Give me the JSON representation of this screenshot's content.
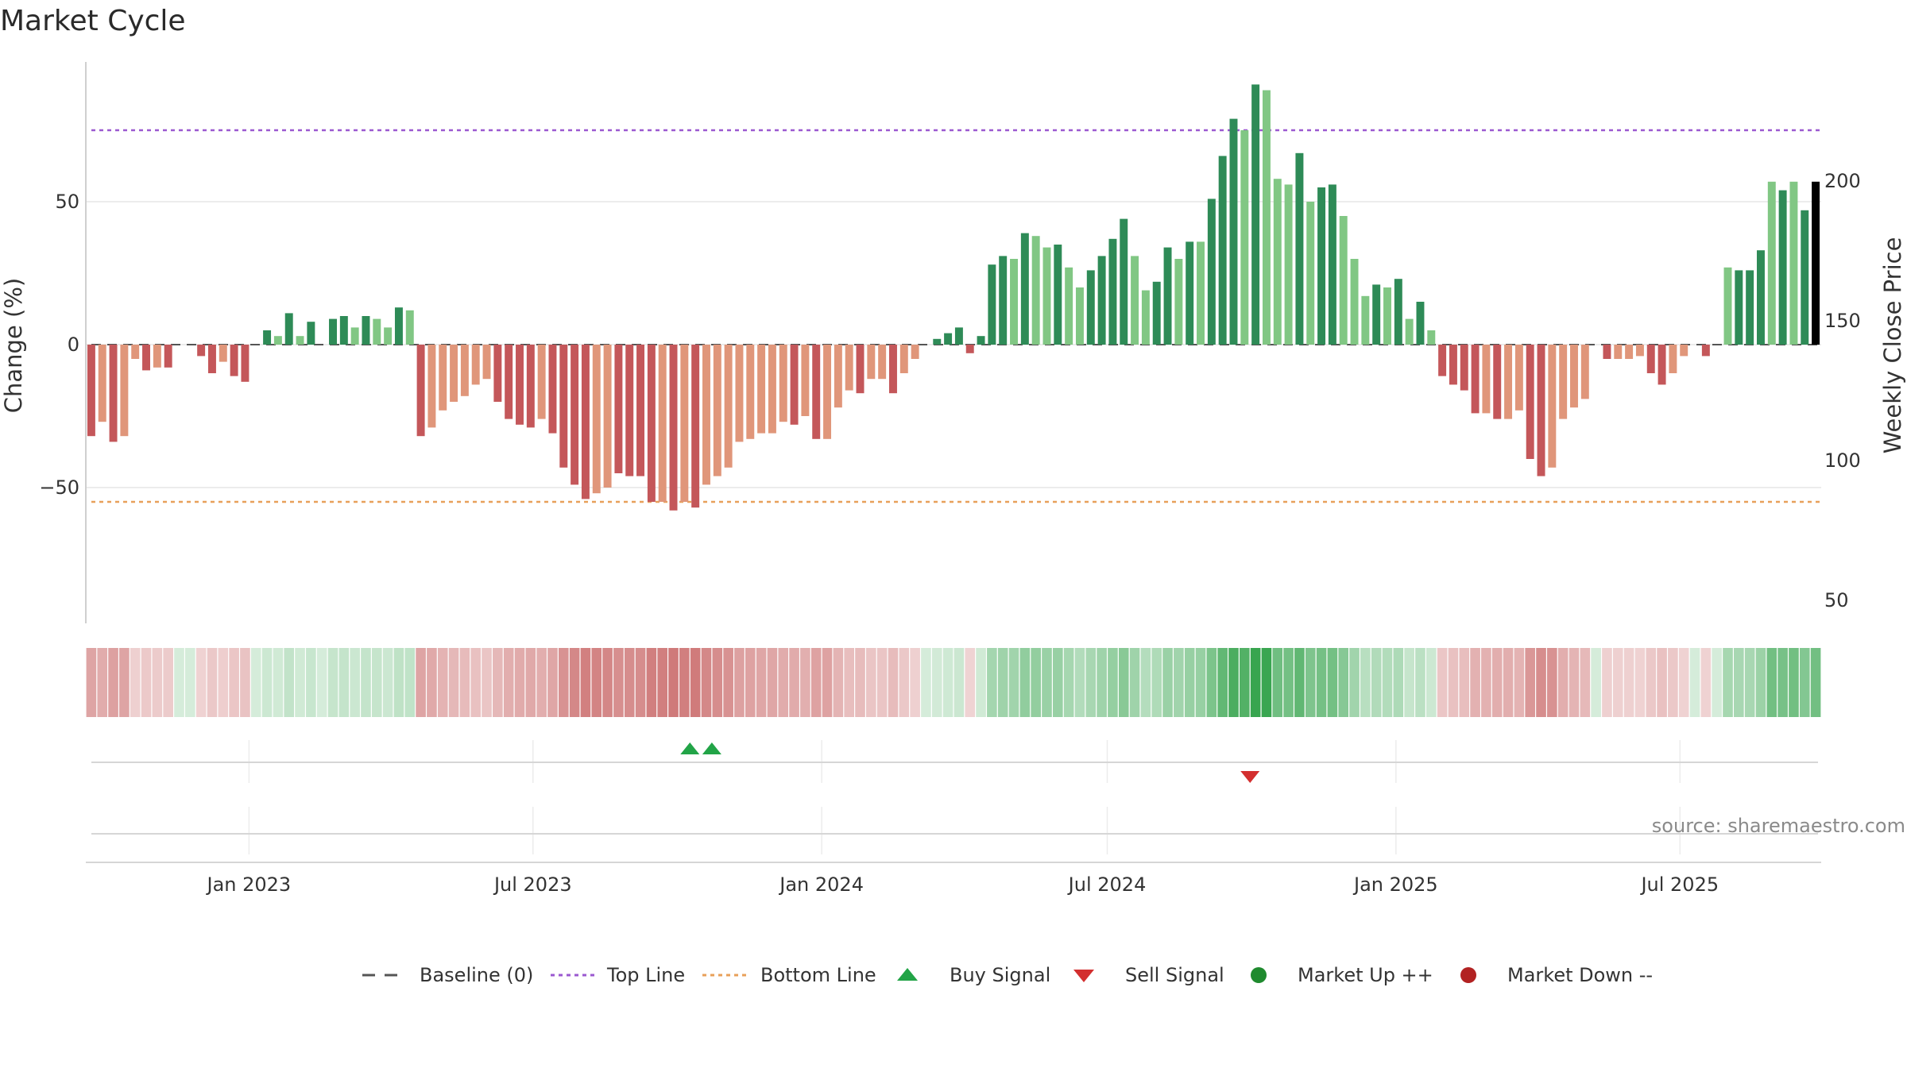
{
  "chart_data": {
    "type": "bar",
    "title": "Market Cycle",
    "ylabel": "Change (%)",
    "y2label": "Weekly Close Price",
    "ylim": [
      -98,
      98
    ],
    "y_ticks": [
      50,
      0,
      -50
    ],
    "y_tick_labels": [
      "50",
      "0",
      "−50"
    ],
    "y2lim": [
      50,
      200
    ],
    "y2_ticks": [
      200,
      150,
      100,
      50
    ],
    "y2_tick_labels": [
      "200",
      "150",
      "100",
      "50"
    ],
    "x_range": [
      "2022-09-19",
      "2025-09-29"
    ],
    "x_ticks": [
      "2023-01-01",
      "2023-07-01",
      "2024-01-01",
      "2024-07-01",
      "2025-01-01",
      "2025-07-01"
    ],
    "x_tick_labels": [
      "Jan 2023",
      "Jul 2023",
      "Jan 2024",
      "Jul 2024",
      "Jan 2025",
      "Jul 2025"
    ],
    "start_date": "2022-09-19",
    "values": [
      -32,
      -27,
      -34,
      -32,
      -5,
      -9,
      -8,
      -8,
      0,
      0,
      -4,
      -10,
      -6,
      -11,
      -13,
      0,
      5,
      3,
      11,
      3,
      8,
      0,
      9,
      10,
      6,
      10,
      9,
      6,
      13,
      12,
      -32,
      -29,
      -23,
      -20,
      -18,
      -14,
      -12,
      -20,
      -26,
      -28,
      -29,
      -26,
      -31,
      -43,
      -49,
      -54,
      -52,
      -50,
      -45,
      -46,
      -46,
      -55,
      -55,
      -58,
      -55,
      -57,
      -49,
      -46,
      -43,
      -34,
      -33,
      -31,
      -31,
      -27,
      -28,
      -25,
      -33,
      -33,
      -22,
      -16,
      -17,
      -12,
      -12,
      -17,
      -10,
      -5,
      0,
      2,
      4,
      6,
      -3,
      3,
      28,
      31,
      30,
      39,
      38,
      34,
      35,
      27,
      20,
      26,
      31,
      37,
      44,
      31,
      19,
      22,
      34,
      30,
      36,
      36,
      51,
      66,
      79,
      75,
      91,
      89,
      58,
      56,
      67,
      50,
      55,
      56,
      45,
      30,
      17,
      21,
      20,
      23,
      9,
      15,
      5,
      -11,
      -14,
      -16,
      -24,
      -24,
      -26,
      -26,
      -23,
      -40,
      -46,
      -43,
      -26,
      -22,
      -19,
      0,
      -5,
      -5,
      -5,
      -4,
      -10,
      -14,
      -10,
      -4,
      0,
      -4,
      0,
      27,
      26,
      26,
      33,
      57,
      54,
      57,
      47,
      57
    ],
    "bar_colors": [
      "#c4575a",
      "#e0967a",
      "#c4575a",
      "#e0967a",
      "#e0967a",
      "#c4575a",
      "#e0967a",
      "#c4575a",
      "#c4575a",
      "#c4575a",
      "#c4575a",
      "#c4575a",
      "#e0967a",
      "#c4575a",
      "#c4575a",
      "#e0967a",
      "#2e8b57",
      "#81c784",
      "#2e8b57",
      "#81c784",
      "#2e8b57",
      "#2e8b57",
      "#2e8b57",
      "#2e8b57",
      "#81c784",
      "#2e8b57",
      "#81c784",
      "#81c784",
      "#2e8b57",
      "#81c784",
      "#c4575a",
      "#e0967a",
      "#e0967a",
      "#e0967a",
      "#e0967a",
      "#e0967a",
      "#e0967a",
      "#c4575a",
      "#c4575a",
      "#c4575a",
      "#c4575a",
      "#e0967a",
      "#c4575a",
      "#c4575a",
      "#c4575a",
      "#c4575a",
      "#e0967a",
      "#e0967a",
      "#c4575a",
      "#c4575a",
      "#c4575a",
      "#c4575a",
      "#e0967a",
      "#c4575a",
      "#e0967a",
      "#c4575a",
      "#e0967a",
      "#e0967a",
      "#e0967a",
      "#e0967a",
      "#e0967a",
      "#e0967a",
      "#e0967a",
      "#e0967a",
      "#c4575a",
      "#e0967a",
      "#c4575a",
      "#e0967a",
      "#e0967a",
      "#e0967a",
      "#c4575a",
      "#e0967a",
      "#e0967a",
      "#c4575a",
      "#e0967a",
      "#e0967a",
      "#2e8b57",
      "#2e8b57",
      "#2e8b57",
      "#2e8b57",
      "#c4575a",
      "#2e8b57",
      "#2e8b57",
      "#2e8b57",
      "#81c784",
      "#2e8b57",
      "#81c784",
      "#81c784",
      "#2e8b57",
      "#81c784",
      "#81c784",
      "#2e8b57",
      "#2e8b57",
      "#2e8b57",
      "#2e8b57",
      "#81c784",
      "#81c784",
      "#2e8b57",
      "#2e8b57",
      "#81c784",
      "#2e8b57",
      "#81c784",
      "#2e8b57",
      "#2e8b57",
      "#2e8b57",
      "#81c784",
      "#2e8b57",
      "#81c784",
      "#81c784",
      "#81c784",
      "#2e8b57",
      "#81c784",
      "#2e8b57",
      "#2e8b57",
      "#81c784",
      "#81c784",
      "#81c784",
      "#2e8b57",
      "#81c784",
      "#2e8b57",
      "#81c784",
      "#2e8b57",
      "#81c784",
      "#c4575a",
      "#c4575a",
      "#c4575a",
      "#c4575a",
      "#e0967a",
      "#c4575a",
      "#e0967a",
      "#e0967a",
      "#c4575a",
      "#c4575a",
      "#e0967a",
      "#e0967a",
      "#e0967a",
      "#e0967a",
      "#e0967a",
      "#c4575a",
      "#e0967a",
      "#e0967a",
      "#e0967a",
      "#c4575a",
      "#c4575a",
      "#e0967a",
      "#e0967a",
      "#c4575a",
      "#c4575a",
      "#2e8b57",
      "#81c784",
      "#2e8b57",
      "#2e8b57",
      "#2e8b57",
      "#81c784",
      "#2e8b57",
      "#81c784",
      "#2e8b57"
    ],
    "top_line": 75,
    "bottom_line": -55,
    "buy_signals": [
      "2023-10-09",
      "2023-10-23"
    ],
    "sell_signals": [
      "2024-09-30"
    ],
    "colors": {
      "up_dark": "#2e8b57",
      "up_light": "#81c784",
      "down_dark": "#c4575a",
      "down_light": "#e0967a",
      "top_line": "#9b59d0",
      "bottom_line": "#e8a05a",
      "baseline": "#555555",
      "buy": "#22a447",
      "sell": "#d32f2f",
      "market_up": "#1f8a2e",
      "market_down": "#b22222",
      "grid": "#e6e6e6"
    },
    "legend": [
      "Baseline (0)",
      "Top Line",
      "Bottom Line",
      "Buy Signal",
      "Sell Signal",
      "Market Up ++",
      "Market Down --"
    ],
    "legend_position": "bottom-center",
    "source": "source: sharemaestro.com",
    "grid": true
  }
}
